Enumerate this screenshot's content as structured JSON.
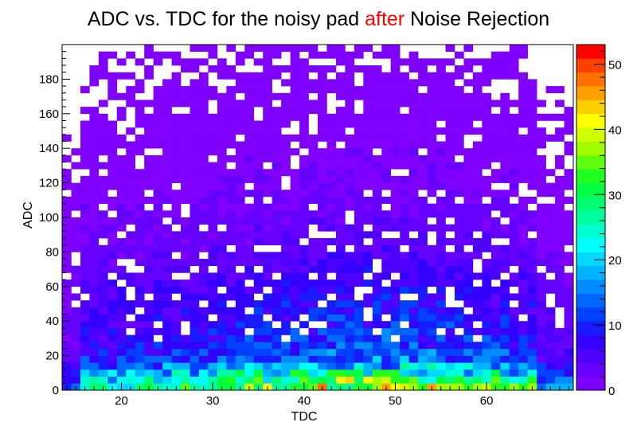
{
  "chart_data": {
    "type": "heatmap",
    "title": {
      "before": "ADC vs. TDC for the noisy pad ",
      "highlight": "after",
      "after": " Noise Rejection",
      "highlight_color": "#ff0000"
    },
    "xlabel": "TDC",
    "ylabel": "ADC",
    "xlim": [
      13.5,
      69.5
    ],
    "ylim": [
      0,
      200
    ],
    "x_bin_width": 1,
    "y_bin_width": 4,
    "xticks": [
      20,
      30,
      40,
      50,
      60
    ],
    "yticks": [
      0,
      20,
      40,
      60,
      80,
      100,
      120,
      140,
      160,
      180
    ],
    "zlim": [
      0,
      53
    ],
    "zticks": [
      0,
      10,
      20,
      30,
      40,
      50
    ],
    "palette": [
      "#8000ff",
      "#6600ff",
      "#4d00ff",
      "#3300ff",
      "#1a1aff",
      "#0040ff",
      "#0066ff",
      "#008cff",
      "#00b3ff",
      "#00d9ff",
      "#00ffff",
      "#00ffd0",
      "#00ffa0",
      "#00ff70",
      "#00ff40",
      "#20ff20",
      "#60ff10",
      "#a0ff00",
      "#d0ff00",
      "#ffff00",
      "#ffd000",
      "#ffa000",
      "#ff7000",
      "#ff4000",
      "#ff0000"
    ],
    "colorbar_levels": 25,
    "profile": {
      "row_base_counts": [
        38,
        33,
        26,
        19,
        15,
        13,
        12,
        11,
        10.5,
        10,
        9.5,
        9,
        8.5,
        8,
        7.5,
        7,
        6.5,
        6,
        5.5,
        5,
        4.5,
        4,
        3.8,
        3.5,
        3.2,
        3,
        2.8,
        2.6,
        2.4,
        2.2,
        2.1,
        2,
        1.9,
        1.8,
        1.7,
        1.6,
        1.5,
        1.4,
        1.3,
        1.2,
        1.1,
        1.05,
        1,
        0.95,
        0.9,
        0.85,
        0.8,
        0.75,
        0.7,
        0.65
      ],
      "tdc_peak": 47,
      "tdc_spread": 15
    }
  }
}
